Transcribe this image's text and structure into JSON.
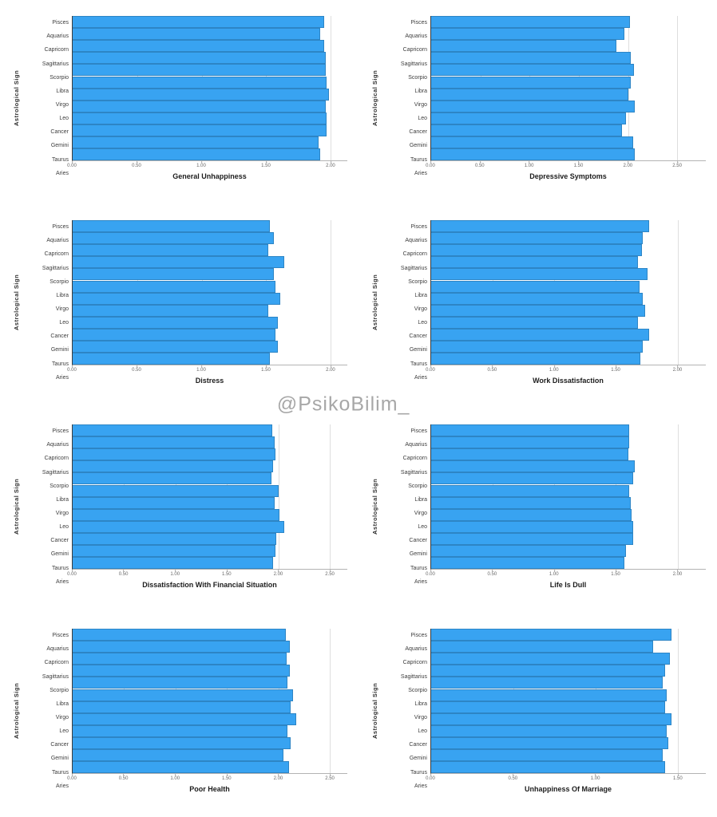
{
  "page": {
    "background": "#ffffff"
  },
  "watermark": {
    "text": "@PsikoBilim_",
    "color": "#9e9e9e"
  },
  "style": {
    "bar_color": "#38a3f1",
    "grid_color": "#dedede",
    "axis_color": "#3c3c3c",
    "baseline_color": "#b3b3b3"
  },
  "chart_data": [
    {
      "type": "bar",
      "orientation": "horizontal",
      "xlabel": "General Unhappiness",
      "ylabel": "Astrological Sign",
      "categories": [
        "Pisces",
        "Aquarius",
        "Capricorn",
        "Sagittarius",
        "Scorpio",
        "Libra",
        "Virgo",
        "Leo",
        "Cancer",
        "Gemini",
        "Taurus",
        "Aries"
      ],
      "values": [
        1.95,
        1.92,
        1.95,
        1.96,
        1.96,
        1.97,
        1.99,
        1.96,
        1.97,
        1.97,
        1.91,
        1.92
      ],
      "xticks": [
        "0.00",
        "0.50",
        "1.00",
        "1.50",
        "2.00"
      ],
      "xlim": [
        0,
        2.13
      ],
      "grid": true,
      "legend": false
    },
    {
      "type": "bar",
      "orientation": "horizontal",
      "xlabel": "Depressive Symptoms",
      "ylabel": "Astrological Sign",
      "categories": [
        "Pisces",
        "Aquarius",
        "Capricorn",
        "Sagittarius",
        "Scorpio",
        "Libra",
        "Virgo",
        "Leo",
        "Cancer",
        "Gemini",
        "Taurus",
        "Aries"
      ],
      "values": [
        2.02,
        1.96,
        1.88,
        2.03,
        2.06,
        2.03,
        2.0,
        2.07,
        1.98,
        1.94,
        2.05,
        2.07
      ],
      "xticks": [
        "0.00",
        "0.50",
        "1.00",
        "1.50",
        "2.00",
        "2.50"
      ],
      "xlim": [
        0,
        2.79
      ],
      "grid": true,
      "legend": false
    },
    {
      "type": "bar",
      "orientation": "horizontal",
      "xlabel": "Distress",
      "ylabel": "Astrological Sign",
      "categories": [
        "Pisces",
        "Aquarius",
        "Capricorn",
        "Sagittarius",
        "Scorpio",
        "Libra",
        "Virgo",
        "Leo",
        "Cancer",
        "Gemini",
        "Taurus",
        "Aries"
      ],
      "values": [
        1.53,
        1.56,
        1.52,
        1.64,
        1.56,
        1.57,
        1.61,
        1.52,
        1.59,
        1.57,
        1.59,
        1.53
      ],
      "xticks": [
        "0.00",
        "0.50",
        "1.00",
        "1.50",
        "2.00"
      ],
      "xlim": [
        0,
        2.13
      ],
      "grid": true,
      "legend": false
    },
    {
      "type": "bar",
      "orientation": "horizontal",
      "xlabel": "Work Dissatisfaction",
      "ylabel": "Astrological Sign",
      "categories": [
        "Pisces",
        "Aquarius",
        "Capricorn",
        "Sagittarius",
        "Scorpio",
        "Libra",
        "Virgo",
        "Leo",
        "Cancer",
        "Gemini",
        "Taurus",
        "Aries"
      ],
      "values": [
        1.77,
        1.72,
        1.71,
        1.68,
        1.76,
        1.69,
        1.72,
        1.74,
        1.68,
        1.77,
        1.72,
        1.7
      ],
      "xticks": [
        "0.00",
        "0.50",
        "1.00",
        "1.50",
        "2.00"
      ],
      "xlim": [
        0,
        2.23
      ],
      "grid": true,
      "legend": false
    },
    {
      "type": "bar",
      "orientation": "horizontal",
      "xlabel": "Dissatisfaction With Financial Situation",
      "ylabel": "Astrological Sign",
      "categories": [
        "Pisces",
        "Aquarius",
        "Capricorn",
        "Sagittarius",
        "Scorpio",
        "Libra",
        "Virgo",
        "Leo",
        "Cancer",
        "Gemini",
        "Taurus",
        "Aries"
      ],
      "values": [
        1.94,
        1.96,
        1.97,
        1.95,
        1.93,
        2.0,
        1.96,
        2.01,
        2.06,
        1.98,
        1.97,
        1.95
      ],
      "xticks": [
        "0.00",
        "0.50",
        "1.00",
        "1.50",
        "2.00",
        "2.50"
      ],
      "xlim": [
        0,
        2.67
      ],
      "grid": true,
      "legend": false
    },
    {
      "type": "bar",
      "orientation": "horizontal",
      "xlabel": "Life Is Dull",
      "ylabel": "Astrological Sign",
      "categories": [
        "Pisces",
        "Aquarius",
        "Capricorn",
        "Sagittarius",
        "Scorpio",
        "Libra",
        "Virgo",
        "Leo",
        "Cancer",
        "Gemini",
        "Taurus",
        "Aries"
      ],
      "values": [
        1.61,
        1.61,
        1.6,
        1.65,
        1.64,
        1.61,
        1.62,
        1.63,
        1.64,
        1.64,
        1.58,
        1.57
      ],
      "xticks": [
        "0.00",
        "0.50",
        "1.00",
        "1.50",
        "2.00"
      ],
      "xlim": [
        0,
        2.23
      ],
      "grid": true,
      "legend": false
    },
    {
      "type": "bar",
      "orientation": "horizontal",
      "xlabel": "Poor Health",
      "ylabel": "Astrological Sign",
      "categories": [
        "Pisces",
        "Aquarius",
        "Capricorn",
        "Sagittarius",
        "Scorpio",
        "Libra",
        "Virgo",
        "Leo",
        "Cancer",
        "Gemini",
        "Taurus",
        "Aries"
      ],
      "values": [
        2.07,
        2.11,
        2.08,
        2.11,
        2.09,
        2.14,
        2.12,
        2.17,
        2.09,
        2.12,
        2.05,
        2.1
      ],
      "xticks": [
        "0.00",
        "0.50",
        "1.00",
        "1.50",
        "2.00",
        "2.50"
      ],
      "xlim": [
        0,
        2.67
      ],
      "grid": true,
      "legend": false
    },
    {
      "type": "bar",
      "orientation": "horizontal",
      "xlabel": "Unhappiness Of Marriage",
      "ylabel": "Astrological Sign",
      "categories": [
        "Pisces",
        "Aquarius",
        "Capricorn",
        "Sagittarius",
        "Scorpio",
        "Libra",
        "Virgo",
        "Leo",
        "Cancer",
        "Gemini",
        "Taurus",
        "Aries"
      ],
      "values": [
        1.46,
        1.35,
        1.45,
        1.42,
        1.41,
        1.43,
        1.42,
        1.46,
        1.43,
        1.44,
        1.41,
        1.42
      ],
      "xticks": [
        "0.00",
        "0.50",
        "1.00",
        "1.50"
      ],
      "xlim": [
        0,
        1.67
      ],
      "grid": true,
      "legend": false
    }
  ]
}
